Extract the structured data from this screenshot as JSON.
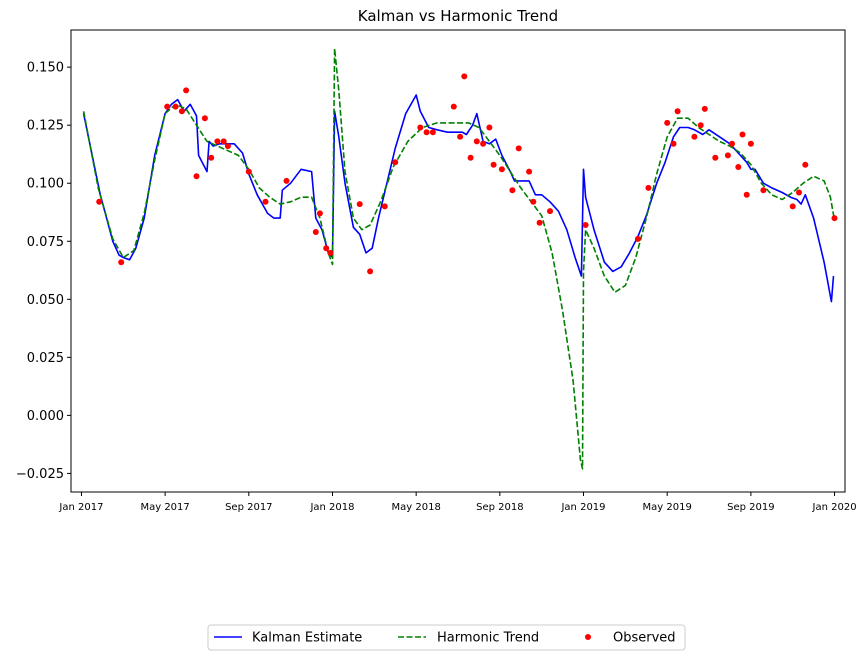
{
  "chart_data": {
    "type": "line",
    "title": "Kalman vs Harmonic Trend",
    "xlabel": "",
    "ylabel": "",
    "x_ticks": [
      {
        "label": "Jan 2017",
        "t": 0
      },
      {
        "label": "May 2017",
        "t": 4
      },
      {
        "label": "Sep 2017",
        "t": 8
      },
      {
        "label": "Jan 2018",
        "t": 12
      },
      {
        "label": "May 2018",
        "t": 16
      },
      {
        "label": "Sep 2018",
        "t": 20
      },
      {
        "label": "Jan 2019",
        "t": 24
      },
      {
        "label": "May 2019",
        "t": 28
      },
      {
        "label": "Sep 2019",
        "t": 32
      },
      {
        "label": "Jan 2020",
        "t": 36
      }
    ],
    "y_ticks": [
      {
        "label": "−0.025",
        "v": -0.025
      },
      {
        "label": "0.000",
        "v": 0.0
      },
      {
        "label": "0.025",
        "v": 0.025
      },
      {
        "label": "0.050",
        "v": 0.05
      },
      {
        "label": "0.075",
        "v": 0.075
      },
      {
        "label": "0.100",
        "v": 0.1
      },
      {
        "label": "0.125",
        "v": 0.125
      },
      {
        "label": "0.150",
        "v": 0.15
      }
    ],
    "xlim": [
      -0.5,
      36.5
    ],
    "ylim": [
      -0.033,
      0.166
    ],
    "legend_position": "bottom-center",
    "grid": false,
    "series": [
      {
        "name": "Kalman Estimate",
        "style": "solid",
        "color": "#0000ff",
        "points": [
          [
            0.1,
            0.13
          ],
          [
            0.9,
            0.095
          ],
          [
            1.5,
            0.075
          ],
          [
            1.8,
            0.069
          ],
          [
            2.0,
            0.068
          ],
          [
            2.3,
            0.067
          ],
          [
            2.6,
            0.072
          ],
          [
            3.0,
            0.085
          ],
          [
            3.5,
            0.112
          ],
          [
            4.0,
            0.13
          ],
          [
            4.3,
            0.134
          ],
          [
            4.6,
            0.136
          ],
          [
            4.9,
            0.131
          ],
          [
            5.2,
            0.134
          ],
          [
            5.5,
            0.129
          ],
          [
            5.6,
            0.112
          ],
          [
            6.0,
            0.105
          ],
          [
            6.1,
            0.118
          ],
          [
            6.3,
            0.116
          ],
          [
            6.6,
            0.117
          ],
          [
            7.0,
            0.117
          ],
          [
            7.3,
            0.117
          ],
          [
            7.7,
            0.113
          ],
          [
            8.0,
            0.104
          ],
          [
            8.4,
            0.095
          ],
          [
            8.9,
            0.087
          ],
          [
            9.2,
            0.085
          ],
          [
            9.5,
            0.085
          ],
          [
            9.6,
            0.097
          ],
          [
            10.0,
            0.1
          ],
          [
            10.5,
            0.106
          ],
          [
            11.0,
            0.105
          ],
          [
            11.2,
            0.085
          ],
          [
            11.5,
            0.08
          ],
          [
            11.8,
            0.07
          ],
          [
            12.0,
            0.068
          ],
          [
            12.1,
            0.131
          ],
          [
            12.3,
            0.12
          ],
          [
            12.6,
            0.1
          ],
          [
            13.0,
            0.081
          ],
          [
            13.3,
            0.078
          ],
          [
            13.6,
            0.07
          ],
          [
            13.9,
            0.072
          ],
          [
            14.2,
            0.085
          ],
          [
            14.6,
            0.1
          ],
          [
            15.0,
            0.115
          ],
          [
            15.5,
            0.13
          ],
          [
            16.0,
            0.138
          ],
          [
            16.2,
            0.131
          ],
          [
            16.6,
            0.124
          ],
          [
            17.0,
            0.123
          ],
          [
            17.5,
            0.122
          ],
          [
            18.2,
            0.122
          ],
          [
            18.4,
            0.121
          ],
          [
            18.7,
            0.125
          ],
          [
            18.9,
            0.13
          ],
          [
            19.2,
            0.118
          ],
          [
            19.5,
            0.117
          ],
          [
            19.8,
            0.119
          ],
          [
            20.1,
            0.112
          ],
          [
            20.5,
            0.105
          ],
          [
            20.7,
            0.101
          ],
          [
            21.0,
            0.101
          ],
          [
            21.4,
            0.101
          ],
          [
            21.7,
            0.095
          ],
          [
            22.0,
            0.095
          ],
          [
            22.4,
            0.092
          ],
          [
            22.8,
            0.088
          ],
          [
            23.2,
            0.08
          ],
          [
            23.6,
            0.068
          ],
          [
            23.9,
            0.06
          ],
          [
            24.0,
            0.106
          ],
          [
            24.1,
            0.094
          ],
          [
            24.5,
            0.08
          ],
          [
            25.0,
            0.066
          ],
          [
            25.4,
            0.062
          ],
          [
            25.8,
            0.064
          ],
          [
            26.2,
            0.07
          ],
          [
            26.6,
            0.077
          ],
          [
            27.0,
            0.086
          ],
          [
            27.5,
            0.1
          ],
          [
            27.9,
            0.109
          ],
          [
            28.3,
            0.12
          ],
          [
            28.6,
            0.124
          ],
          [
            29.0,
            0.124
          ],
          [
            29.3,
            0.123
          ],
          [
            29.7,
            0.121
          ],
          [
            30.0,
            0.123
          ],
          [
            30.5,
            0.12
          ],
          [
            31.0,
            0.117
          ],
          [
            31.5,
            0.112
          ],
          [
            31.8,
            0.109
          ],
          [
            32.0,
            0.106
          ],
          [
            32.2,
            0.106
          ],
          [
            32.6,
            0.1
          ],
          [
            33.0,
            0.098
          ],
          [
            33.5,
            0.096
          ],
          [
            33.9,
            0.094
          ],
          [
            34.2,
            0.093
          ],
          [
            34.4,
            0.091
          ],
          [
            34.6,
            0.095
          ],
          [
            35.0,
            0.085
          ],
          [
            35.5,
            0.066
          ],
          [
            35.85,
            0.049
          ],
          [
            35.95,
            0.06
          ]
        ]
      },
      {
        "name": "Harmonic Trend",
        "style": "dashed",
        "color": "#008000",
        "points": [
          [
            0.1,
            0.131
          ],
          [
            0.8,
            0.098
          ],
          [
            1.5,
            0.076
          ],
          [
            2.0,
            0.068
          ],
          [
            2.5,
            0.071
          ],
          [
            3.0,
            0.087
          ],
          [
            3.5,
            0.11
          ],
          [
            4.0,
            0.13
          ],
          [
            4.5,
            0.134
          ],
          [
            5.0,
            0.132
          ],
          [
            5.5,
            0.125
          ],
          [
            6.0,
            0.118
          ],
          [
            7.0,
            0.114
          ],
          [
            7.5,
            0.112
          ],
          [
            8.0,
            0.106
          ],
          [
            8.5,
            0.098
          ],
          [
            9.0,
            0.094
          ],
          [
            9.5,
            0.091
          ],
          [
            10.0,
            0.092
          ],
          [
            10.5,
            0.094
          ],
          [
            11.0,
            0.094
          ],
          [
            11.4,
            0.085
          ],
          [
            11.8,
            0.07
          ],
          [
            12.0,
            0.065
          ],
          [
            12.1,
            0.158
          ],
          [
            12.3,
            0.14
          ],
          [
            12.6,
            0.105
          ],
          [
            13.0,
            0.085
          ],
          [
            13.4,
            0.08
          ],
          [
            13.8,
            0.082
          ],
          [
            14.3,
            0.092
          ],
          [
            14.9,
            0.107
          ],
          [
            15.6,
            0.118
          ],
          [
            16.3,
            0.124
          ],
          [
            17.0,
            0.126
          ],
          [
            18.0,
            0.126
          ],
          [
            18.5,
            0.126
          ],
          [
            19.0,
            0.124
          ],
          [
            19.5,
            0.118
          ],
          [
            20.0,
            0.112
          ],
          [
            20.5,
            0.105
          ],
          [
            21.0,
            0.098
          ],
          [
            21.5,
            0.092
          ],
          [
            22.0,
            0.086
          ],
          [
            22.5,
            0.07
          ],
          [
            23.0,
            0.045
          ],
          [
            23.5,
            0.015
          ],
          [
            23.85,
            -0.019
          ],
          [
            23.95,
            -0.023
          ],
          [
            24.0,
            0.062
          ],
          [
            24.1,
            0.08
          ],
          [
            24.5,
            0.072
          ],
          [
            25.0,
            0.06
          ],
          [
            25.5,
            0.053
          ],
          [
            26.0,
            0.056
          ],
          [
            26.5,
            0.068
          ],
          [
            27.0,
            0.085
          ],
          [
            27.5,
            0.104
          ],
          [
            28.0,
            0.12
          ],
          [
            28.5,
            0.128
          ],
          [
            29.0,
            0.128
          ],
          [
            29.5,
            0.124
          ],
          [
            30.0,
            0.121
          ],
          [
            30.5,
            0.118
          ],
          [
            31.0,
            0.116
          ],
          [
            31.5,
            0.113
          ],
          [
            32.0,
            0.108
          ],
          [
            32.5,
            0.1
          ],
          [
            33.0,
            0.095
          ],
          [
            33.5,
            0.093
          ],
          [
            34.0,
            0.096
          ],
          [
            34.5,
            0.1
          ],
          [
            35.0,
            0.103
          ],
          [
            35.5,
            0.101
          ],
          [
            35.8,
            0.094
          ],
          [
            36.0,
            0.084
          ]
        ]
      },
      {
        "name": "Observed",
        "style": "markers",
        "color": "#ff0000",
        "points": [
          [
            0.85,
            0.092
          ],
          [
            1.9,
            0.066
          ],
          [
            4.1,
            0.133
          ],
          [
            4.5,
            0.133
          ],
          [
            4.8,
            0.131
          ],
          [
            5.0,
            0.14
          ],
          [
            5.5,
            0.103
          ],
          [
            5.9,
            0.128
          ],
          [
            6.2,
            0.111
          ],
          [
            6.5,
            0.118
          ],
          [
            6.8,
            0.118
          ],
          [
            7.0,
            0.116
          ],
          [
            8.0,
            0.105
          ],
          [
            8.8,
            0.092
          ],
          [
            9.8,
            0.101
          ],
          [
            11.2,
            0.079
          ],
          [
            11.4,
            0.087
          ],
          [
            11.7,
            0.072
          ],
          [
            11.9,
            0.07
          ],
          [
            13.3,
            0.091
          ],
          [
            13.8,
            0.062
          ],
          [
            14.5,
            0.09
          ],
          [
            15.0,
            0.109
          ],
          [
            16.2,
            0.124
          ],
          [
            16.5,
            0.122
          ],
          [
            16.8,
            0.122
          ],
          [
            17.8,
            0.133
          ],
          [
            18.1,
            0.12
          ],
          [
            18.3,
            0.146
          ],
          [
            18.6,
            0.111
          ],
          [
            18.9,
            0.118
          ],
          [
            19.2,
            0.117
          ],
          [
            19.5,
            0.124
          ],
          [
            19.7,
            0.108
          ],
          [
            20.1,
            0.106
          ],
          [
            20.6,
            0.097
          ],
          [
            20.9,
            0.115
          ],
          [
            21.4,
            0.105
          ],
          [
            21.6,
            0.092
          ],
          [
            21.9,
            0.083
          ],
          [
            22.4,
            0.088
          ],
          [
            24.1,
            0.082
          ],
          [
            26.6,
            0.076
          ],
          [
            27.1,
            0.098
          ],
          [
            28.0,
            0.126
          ],
          [
            28.3,
            0.117
          ],
          [
            28.5,
            0.131
          ],
          [
            29.3,
            0.12
          ],
          [
            29.6,
            0.125
          ],
          [
            29.8,
            0.132
          ],
          [
            30.3,
            0.111
          ],
          [
            30.9,
            0.112
          ],
          [
            31.1,
            0.117
          ],
          [
            31.4,
            0.107
          ],
          [
            31.6,
            0.121
          ],
          [
            31.8,
            0.095
          ],
          [
            32.0,
            0.117
          ],
          [
            32.6,
            0.097
          ],
          [
            34.0,
            0.09
          ],
          [
            34.3,
            0.096
          ],
          [
            34.6,
            0.108
          ],
          [
            36.0,
            0.085
          ]
        ]
      }
    ]
  }
}
